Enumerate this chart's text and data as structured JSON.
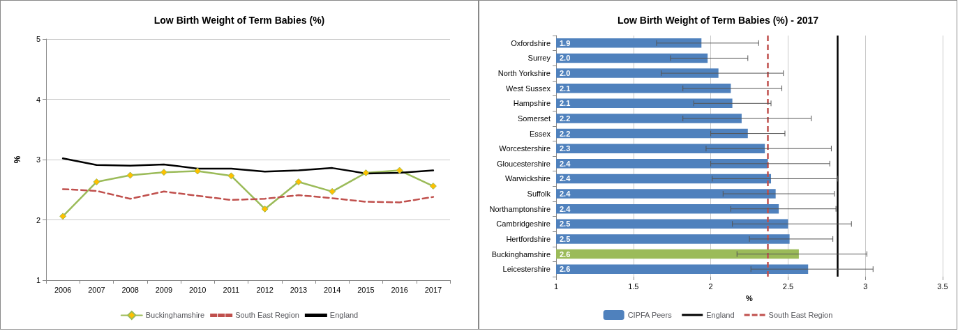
{
  "chart_data": [
    {
      "type": "line",
      "title": "Low Birth Weight of Term Babies (%)",
      "ylabel": "%",
      "categories": [
        "2006",
        "2007",
        "2008",
        "2009",
        "2010",
        "2011",
        "2012",
        "2013",
        "2014",
        "2015",
        "2016",
        "2017"
      ],
      "series": [
        {
          "name": "Buckinghamshire",
          "color": "#9bbb59",
          "marker": "diamond",
          "line_style": "solid",
          "values": [
            2.06,
            2.63,
            2.74,
            2.79,
            2.81,
            2.73,
            2.18,
            2.63,
            2.47,
            2.78,
            2.82,
            2.56
          ]
        },
        {
          "name": "South East Region",
          "color": "#c0504d",
          "marker": "none",
          "line_style": "dashed",
          "values": [
            2.51,
            2.48,
            2.35,
            2.47,
            2.4,
            2.33,
            2.35,
            2.41,
            2.36,
            2.3,
            2.29,
            2.38
          ]
        },
        {
          "name": "England",
          "color": "#000000",
          "marker": "none",
          "line_style": "solid",
          "values": [
            3.02,
            2.91,
            2.9,
            2.92,
            2.85,
            2.85,
            2.8,
            2.82,
            2.86,
            2.77,
            2.78,
            2.82
          ]
        }
      ],
      "ylim": [
        1,
        5
      ],
      "yticks": [
        1,
        2,
        3,
        4,
        5
      ],
      "grid": "y",
      "legend": "bottom"
    },
    {
      "type": "bar",
      "orientation": "horizontal",
      "title": "Low Birth Weight of Term Babies (%) - 2017",
      "xlabel": "%",
      "categories": [
        "Oxfordshire",
        "Surrey",
        "North Yorkshire",
        "West Sussex",
        "Hampshire",
        "Somerset",
        "Essex",
        "Worcestershire",
        "Gloucestershire",
        "Warwickshire",
        "Suffolk",
        "Northamptonshire",
        "Cambridgeshire",
        "Hertfordshire",
        "Buckinghamshire",
        "Leicestershire"
      ],
      "series": [
        {
          "name": "CIPFA Peers",
          "color": "#4f81bd",
          "colors": [
            "#4f81bd",
            "#4f81bd",
            "#4f81bd",
            "#4f81bd",
            "#4f81bd",
            "#4f81bd",
            "#4f81bd",
            "#4f81bd",
            "#4f81bd",
            "#4f81bd",
            "#4f81bd",
            "#4f81bd",
            "#4f81bd",
            "#4f81bd",
            "#9bbb59",
            "#4f81bd"
          ],
          "values": [
            1.94,
            1.98,
            2.05,
            2.13,
            2.14,
            2.2,
            2.24,
            2.35,
            2.37,
            2.39,
            2.42,
            2.44,
            2.5,
            2.51,
            2.57,
            2.63
          ],
          "value_labels": [
            "1.9",
            "2.0",
            "2.0",
            "2.1",
            "2.1",
            "2.2",
            "2.2",
            "2.3",
            "2.4",
            "2.4",
            "2.4",
            "2.4",
            "2.5",
            "2.5",
            "2.6",
            "2.6"
          ],
          "errors": [
            [
              1.65,
              2.31
            ],
            [
              1.74,
              2.24
            ],
            [
              1.68,
              2.47
            ],
            [
              1.82,
              2.46
            ],
            [
              1.89,
              2.39
            ],
            [
              1.82,
              2.65
            ],
            [
              2.0,
              2.48
            ],
            [
              1.97,
              2.78
            ],
            [
              2.0,
              2.77
            ],
            [
              2.01,
              2.82
            ],
            [
              2.08,
              2.8
            ],
            [
              2.13,
              2.81
            ],
            [
              2.14,
              2.91
            ],
            [
              2.25,
              2.79
            ],
            [
              2.17,
              3.01
            ],
            [
              2.26,
              3.05
            ]
          ]
        }
      ],
      "ref_lines": [
        {
          "axis": "x",
          "value": 2.82,
          "label": "England",
          "color": "#000000",
          "line_style": "solid"
        },
        {
          "axis": "x",
          "value": 2.37,
          "label": "South East Region",
          "color": "#c0504d",
          "line_style": "dashed"
        }
      ],
      "xlim": [
        1,
        3.5
      ],
      "xticks": [
        1,
        1.5,
        2,
        2.5,
        3,
        3.5
      ],
      "grid": "x",
      "legend": "bottom"
    }
  ]
}
